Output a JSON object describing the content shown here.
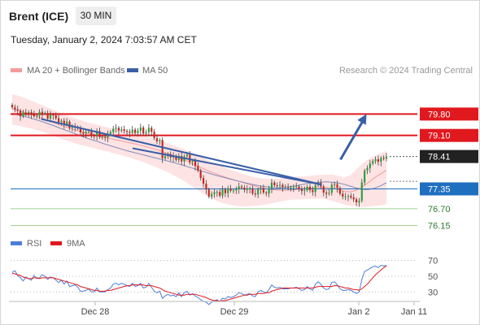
{
  "header": {
    "instrument": "Brent (ICE)",
    "timeframe": "30 MIN",
    "datetime": "Tuesday, January 2, 2024 7:03:57 AM CET"
  },
  "legend": {
    "bb_label": "MA 20 + Bollinger Bands",
    "ma50_label": "MA 50",
    "copyright": "Research © 2024 Trading Central",
    "rsi_label": "RSI",
    "rsi_ma_label": "9MA"
  },
  "colors": {
    "up": "#2e9f3f",
    "down": "#c3281d",
    "bb_fill": "#fde3e3",
    "ma20": "#f29b9b",
    "ma50": "#7f8ab8",
    "trend": "#3a5fa7",
    "resistance": "#e0191f",
    "support_blue": "#1f6fc0",
    "support_green": "#9ccf8f",
    "rsi": "#4d7ed8",
    "rsi_ma": "#e0191f"
  },
  "chart_data": [
    {
      "type": "candlestick",
      "title": "Brent (ICE) 30 MIN",
      "x_ticks": [
        "Dec 28",
        "Dec 29",
        "Jan 2",
        "Jan 11"
      ],
      "ylim": [
        75.9,
        80.9
      ],
      "levels": [
        {
          "value": 79.8,
          "label": "79.80",
          "kind": "resistance"
        },
        {
          "value": 79.1,
          "label": "79.10",
          "kind": "resistance"
        },
        {
          "value": 78.41,
          "label": "78.41",
          "kind": "last"
        },
        {
          "value": 77.35,
          "label": "77.35",
          "kind": "pivot"
        },
        {
          "value": 76.7,
          "label": "76.70",
          "kind": "support"
        },
        {
          "value": 76.15,
          "label": "76.15",
          "kind": "support"
        }
      ],
      "closes": [
        80.02,
        79.95,
        79.91,
        79.73,
        79.85,
        79.82,
        79.86,
        79.79,
        79.73,
        79.75,
        79.87,
        79.83,
        79.83,
        79.65,
        79.78,
        79.76,
        79.66,
        79.54,
        79.58,
        79.46,
        79.55,
        79.35,
        79.38,
        79.37,
        79.33,
        79.2,
        79.16,
        79.22,
        79.22,
        79.1,
        79.09,
        79.24,
        79.05,
        79.05,
        79.03,
        79.14,
        79.21,
        79.32,
        79.35,
        79.26,
        79.3,
        79.25,
        79.22,
        79.19,
        79.29,
        79.18,
        79.25,
        79.36,
        79.16,
        79.2,
        79.35,
        79.22,
        79.01,
        78.91,
        78.95,
        78.35,
        78.42,
        78.49,
        78.38,
        78.43,
        78.3,
        78.43,
        78.25,
        78.42,
        78.47,
        78.23,
        78.27,
        78.1,
        77.95,
        77.71,
        77.52,
        77.33,
        77.1,
        77.18,
        77.24,
        77.25,
        77.13,
        77.33,
        77.21,
        77.36,
        77.29,
        77.3,
        77.34,
        77.43,
        77.39,
        77.32,
        77.35,
        77.37,
        77.2,
        77.17,
        77.33,
        77.37,
        77.23,
        77.2,
        77.36,
        77.56,
        77.47,
        77.46,
        77.48,
        77.41,
        77.41,
        77.39,
        77.4,
        77.41,
        77.43,
        77.35,
        77.28,
        77.31,
        77.42,
        77.31,
        77.25,
        77.47,
        77.55,
        77.43,
        77.23,
        77.19,
        77.22,
        77.49,
        77.5,
        77.38,
        77.19,
        77.1,
        77.1,
        77.12,
        77.07,
        77.01,
        76.91,
        76.96,
        77.56,
        77.95,
        78.03,
        78.18,
        78.26,
        78.32,
        78.24,
        78.36,
        78.34,
        78.41
      ],
      "ma20": [
        79.96,
        79.92,
        79.86,
        79.79,
        79.73,
        79.66,
        79.59,
        79.51,
        79.43,
        79.37,
        79.31,
        79.25,
        79.2,
        79.15,
        79.1,
        79.05,
        79.01,
        78.96,
        78.92,
        78.88,
        78.84,
        78.79,
        78.74,
        78.69,
        78.63,
        78.56,
        78.49,
        78.42,
        78.34,
        78.25,
        78.16,
        78.07,
        77.98,
        77.9,
        77.82,
        77.75,
        77.69,
        77.63,
        77.57,
        77.51,
        77.45,
        77.4,
        77.36,
        77.33,
        77.31,
        77.3,
        77.31,
        77.33,
        77.35,
        77.37,
        77.38,
        77.4,
        77.4,
        77.38,
        77.33,
        77.27,
        77.25,
        77.3,
        77.41,
        77.56,
        77.71,
        77.84,
        77.96
      ],
      "ma50": [
        79.82,
        79.77,
        79.72,
        79.67,
        79.61,
        79.55,
        79.48,
        79.41,
        79.33,
        79.26,
        79.19,
        79.11,
        79.04,
        78.97,
        78.91,
        78.84,
        78.78,
        78.72,
        78.66,
        78.6,
        78.55,
        78.5,
        78.45,
        78.4,
        78.35,
        78.3,
        78.25,
        78.2,
        78.14,
        78.08,
        78.02,
        77.96,
        77.9,
        77.84,
        77.78,
        77.73,
        77.68,
        77.63,
        77.58,
        77.53,
        77.49,
        77.45,
        77.42,
        77.4,
        77.39,
        77.4,
        77.42,
        77.45,
        77.49,
        77.53,
        77.55,
        77.57,
        77.58,
        77.57,
        77.54,
        77.5,
        77.44,
        77.38,
        77.33,
        77.33,
        77.37,
        77.45,
        77.55
      ],
      "bb_upper": [
        80.45,
        80.4,
        80.33,
        80.25,
        80.17,
        80.09,
        80.0,
        79.92,
        79.84,
        79.76,
        79.69,
        79.62,
        79.56,
        79.5,
        79.45,
        79.4,
        79.35,
        79.31,
        79.27,
        79.23,
        79.19,
        79.14,
        79.09,
        79.03,
        78.97,
        78.9,
        78.83,
        78.76,
        78.68,
        78.6,
        78.51,
        78.42,
        78.33,
        78.24,
        78.15,
        78.07,
        77.99,
        77.92,
        77.85,
        77.79,
        77.74,
        77.7,
        77.68,
        77.67,
        77.68,
        77.7,
        77.72,
        77.74,
        77.76,
        77.77,
        77.79,
        77.81,
        77.82,
        77.82,
        77.78,
        77.72,
        77.79,
        77.98,
        78.17,
        78.32,
        78.43,
        78.52,
        78.6
      ],
      "bb_lower": [
        79.45,
        79.42,
        79.38,
        79.33,
        79.28,
        79.22,
        79.15,
        79.07,
        79.0,
        78.93,
        78.87,
        78.81,
        78.76,
        78.71,
        78.66,
        78.61,
        78.56,
        78.51,
        78.46,
        78.4,
        78.34,
        78.28,
        78.21,
        78.13,
        78.05,
        77.96,
        77.87,
        77.77,
        77.66,
        77.54,
        77.41,
        77.28,
        77.15,
        77.04,
        76.95,
        76.88,
        76.83,
        76.8,
        76.78,
        76.78,
        76.79,
        76.81,
        76.84,
        76.88,
        76.92,
        76.96,
        76.99,
        77.0,
        77.01,
        77.02,
        77.02,
        77.03,
        77.01,
        76.96,
        76.9,
        76.84,
        76.8,
        76.78,
        76.76,
        76.77,
        76.79,
        76.81,
        76.85
      ],
      "trendlines": [
        {
          "from": [
            0.075,
            79.64
          ],
          "to": [
            0.765,
            77.49
          ]
        },
        {
          "from": [
            0.3,
            78.68
          ],
          "to": [
            0.765,
            77.49
          ]
        }
      ],
      "projection_arrow": {
        "from": [
          0.811,
          78.31
        ],
        "to": [
          0.875,
          79.8
        ]
      }
    },
    {
      "type": "line",
      "title": "",
      "ylim": [
        20,
        80
      ],
      "y_ticks": [
        70,
        50,
        30
      ],
      "series": [
        {
          "name": "RSI",
          "values": [
            55,
            57,
            51,
            48,
            44,
            49,
            47,
            45,
            51,
            47,
            48,
            52,
            50,
            46,
            49,
            48,
            45,
            42,
            45,
            40,
            44,
            37,
            38,
            39,
            36,
            31,
            31,
            32,
            34,
            30,
            30,
            35,
            30,
            30,
            30,
            33,
            35,
            40,
            41,
            39,
            41,
            40,
            38,
            37,
            41,
            37,
            38,
            41,
            35,
            36,
            41,
            36,
            31,
            29,
            31,
            22,
            25,
            27,
            25,
            26,
            24,
            29,
            24,
            29,
            31,
            26,
            28,
            25,
            23,
            20,
            18,
            17,
            14,
            17,
            19,
            20,
            18,
            22,
            21,
            24,
            23,
            24,
            26,
            29,
            28,
            26,
            27,
            28,
            25,
            24,
            30,
            32,
            30,
            29,
            33,
            39,
            36,
            35,
            36,
            34,
            34,
            34,
            35,
            35,
            36,
            34,
            32,
            33,
            37,
            34,
            32,
            40,
            43,
            40,
            35,
            33,
            34,
            42,
            43,
            39,
            34,
            32,
            32,
            33,
            32,
            30,
            28,
            30,
            46,
            56,
            58,
            60,
            62,
            63,
            61,
            64,
            63,
            64
          ]
        },
        {
          "name": "9MA",
          "values": [
            54,
            53,
            52,
            51,
            49,
            48,
            47,
            47,
            48,
            48,
            47,
            48,
            48,
            48,
            48,
            48,
            47,
            46,
            45,
            44,
            43,
            42,
            41,
            40,
            39,
            37,
            36,
            35,
            34,
            33,
            32,
            32,
            31,
            31,
            31,
            32,
            32,
            33,
            34,
            35,
            36,
            37,
            38,
            38,
            39,
            39,
            39,
            39,
            39,
            38,
            38,
            38,
            37,
            36,
            35,
            33,
            31,
            30,
            29,
            28,
            27,
            26,
            26,
            26,
            27,
            27,
            27,
            27,
            26,
            25,
            24,
            23,
            21,
            20,
            19,
            19,
            18,
            19,
            19,
            20,
            21,
            22,
            23,
            24,
            25,
            26,
            26,
            27,
            27,
            27,
            28,
            28,
            28,
            29,
            29,
            31,
            32,
            33,
            34,
            35,
            35,
            35,
            35,
            35,
            35,
            35,
            35,
            35,
            35,
            35,
            35,
            36,
            37,
            37,
            37,
            37,
            37,
            37,
            38,
            38,
            37,
            36,
            35,
            35,
            34,
            33,
            33,
            32,
            34,
            37,
            40,
            44,
            48,
            52,
            55,
            58,
            61,
            63
          ]
        }
      ]
    }
  ]
}
